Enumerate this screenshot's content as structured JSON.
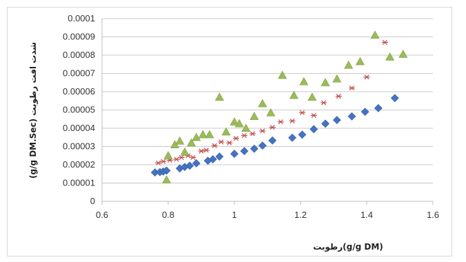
{
  "chart_data": {
    "type": "scatter",
    "title": "",
    "xlabel": "رطوبت(g/g DM)",
    "ylabel": "(g/g DM.Sec) شدت افت رطوبت",
    "xlim": [
      0.6,
      1.6
    ],
    "ylim": [
      0,
      0.0001
    ],
    "x_ticks": [
      "0.6",
      "0.8",
      "1",
      "1.2",
      "1.4",
      "1.6"
    ],
    "y_ticks": [
      "0",
      "0.00001",
      "0.00002",
      "0.00003",
      "0.00004",
      "0.00005",
      "0.00006",
      "0.00007",
      "0.00008",
      "0.00009",
      "0.0001"
    ],
    "grid": "horizontal",
    "legend": "none",
    "series": [
      {
        "marker": "diamond",
        "color": "#4472c4",
        "points": [
          [
            0.76,
            1.58e-05
          ],
          [
            0.775,
            1.6e-05
          ],
          [
            0.785,
            1.63e-05
          ],
          [
            0.795,
            1.68e-05
          ],
          [
            0.835,
            1.8e-05
          ],
          [
            0.85,
            1.88e-05
          ],
          [
            0.865,
            1.95e-05
          ],
          [
            0.885,
            2.08e-05
          ],
          [
            0.92,
            2.22e-05
          ],
          [
            0.935,
            2.3e-05
          ],
          [
            0.955,
            2.45e-05
          ],
          [
            1.0,
            2.6e-05
          ],
          [
            1.03,
            2.75e-05
          ],
          [
            1.06,
            2.88e-05
          ],
          [
            1.085,
            3.05e-05
          ],
          [
            1.115,
            3.33e-05
          ],
          [
            1.175,
            3.48e-05
          ],
          [
            1.205,
            3.65e-05
          ],
          [
            1.24,
            3.95e-05
          ],
          [
            1.275,
            4.25e-05
          ],
          [
            1.31,
            4.45e-05
          ],
          [
            1.355,
            4.65e-05
          ],
          [
            1.395,
            4.9e-05
          ],
          [
            1.435,
            5.1e-05
          ],
          [
            1.485,
            5.65e-05
          ]
        ]
      },
      {
        "marker": "asterisk",
        "color": "#c0504d",
        "points": [
          [
            0.77,
            2.1e-05
          ],
          [
            0.785,
            2.18e-05
          ],
          [
            0.805,
            2.25e-05
          ],
          [
            0.825,
            2.3e-05
          ],
          [
            0.84,
            2.4e-05
          ],
          [
            0.86,
            2.5e-05
          ],
          [
            0.875,
            2.4e-05
          ],
          [
            0.9,
            2.75e-05
          ],
          [
            0.915,
            2.8e-05
          ],
          [
            0.94,
            3.05e-05
          ],
          [
            0.96,
            3.25e-05
          ],
          [
            0.985,
            3.2e-05
          ],
          [
            1.005,
            3.45e-05
          ],
          [
            1.03,
            3.6e-05
          ],
          [
            1.055,
            3.7e-05
          ],
          [
            1.085,
            3.85e-05
          ],
          [
            1.115,
            4.05e-05
          ],
          [
            1.14,
            4.35e-05
          ],
          [
            1.175,
            4.4e-05
          ],
          [
            1.205,
            4.85e-05
          ],
          [
            1.24,
            4.7e-05
          ],
          [
            1.27,
            5.4e-05
          ],
          [
            1.315,
            5.75e-05
          ],
          [
            1.355,
            6.2e-05
          ],
          [
            1.4,
            6.8e-05
          ],
          [
            1.455,
            8.7e-05
          ]
        ]
      },
      {
        "marker": "triangle",
        "color": "#9bbb59",
        "points": [
          [
            0.795,
            1.18e-05
          ],
          [
            0.8,
            2.5e-05
          ],
          [
            0.82,
            3.1e-05
          ],
          [
            0.835,
            3.3e-05
          ],
          [
            0.85,
            2.7e-05
          ],
          [
            0.87,
            3.2e-05
          ],
          [
            0.885,
            3.5e-05
          ],
          [
            0.905,
            3.65e-05
          ],
          [
            0.925,
            3.65e-05
          ],
          [
            0.955,
            5.7e-05
          ],
          [
            0.975,
            3.8e-05
          ],
          [
            1.0,
            4.35e-05
          ],
          [
            1.015,
            4.25e-05
          ],
          [
            1.035,
            4e-05
          ],
          [
            1.06,
            4.65e-05
          ],
          [
            1.085,
            5.35e-05
          ],
          [
            1.11,
            4.85e-05
          ],
          [
            1.145,
            6.9e-05
          ],
          [
            1.18,
            5.8e-05
          ],
          [
            1.21,
            6.55e-05
          ],
          [
            1.235,
            5.7e-05
          ],
          [
            1.275,
            6.5e-05
          ],
          [
            1.31,
            6.7e-05
          ],
          [
            1.345,
            7.45e-05
          ],
          [
            1.38,
            7.65e-05
          ],
          [
            1.425,
            9.1e-05
          ],
          [
            1.47,
            7.9e-05
          ],
          [
            1.51,
            8.05e-05
          ]
        ]
      }
    ]
  }
}
